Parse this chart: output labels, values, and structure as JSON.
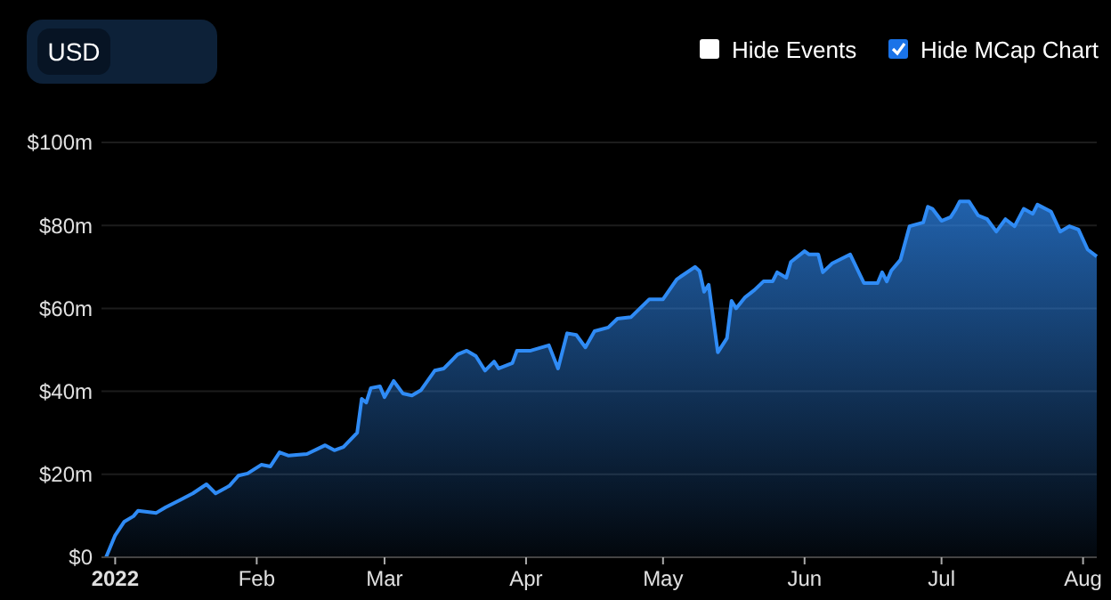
{
  "chart_data": {
    "type": "area",
    "annotations": [
      "USD",
      "Hide Events",
      "Hide MCap Chart"
    ],
    "x": [
      "2021-12-30",
      "2022-01-01",
      "2022-01-03",
      "2022-01-05",
      "2022-01-06",
      "2022-01-10",
      "2022-01-12",
      "2022-01-15",
      "2022-01-18",
      "2022-01-21",
      "2022-01-23",
      "2022-01-26",
      "2022-01-28",
      "2022-01-30",
      "2022-02-02",
      "2022-02-04",
      "2022-02-06",
      "2022-02-08",
      "2022-02-12",
      "2022-02-16",
      "2022-02-18",
      "2022-02-20",
      "2022-02-23",
      "2022-02-24",
      "2022-02-25",
      "2022-02-26",
      "2022-02-28",
      "2022-03-01",
      "2022-03-03",
      "2022-03-05",
      "2022-03-07",
      "2022-03-09",
      "2022-03-12",
      "2022-03-14",
      "2022-03-17",
      "2022-03-19",
      "2022-03-21",
      "2022-03-23",
      "2022-03-25",
      "2022-03-26",
      "2022-03-29",
      "2022-03-30",
      "2022-04-02",
      "2022-04-06",
      "2022-04-08",
      "2022-04-10",
      "2022-04-12",
      "2022-04-14",
      "2022-04-16",
      "2022-04-19",
      "2022-04-21",
      "2022-04-24",
      "2022-04-28",
      "2022-05-01",
      "2022-05-04",
      "2022-05-08",
      "2022-05-09",
      "2022-05-10",
      "2022-05-11",
      "2022-05-13",
      "2022-05-15",
      "2022-05-16",
      "2022-05-17",
      "2022-05-19",
      "2022-05-21",
      "2022-05-23",
      "2022-05-25",
      "2022-05-26",
      "2022-05-28",
      "2022-05-29",
      "2022-06-01",
      "2022-06-02",
      "2022-06-04",
      "2022-06-05",
      "2022-06-07",
      "2022-06-11",
      "2022-06-14",
      "2022-06-17",
      "2022-06-18",
      "2022-06-19",
      "2022-06-20",
      "2022-06-22",
      "2022-06-24",
      "2022-06-27",
      "2022-06-28",
      "2022-06-29",
      "2022-07-01",
      "2022-07-03",
      "2022-07-04",
      "2022-07-05",
      "2022-07-07",
      "2022-07-09",
      "2022-07-11",
      "2022-07-13",
      "2022-07-15",
      "2022-07-17",
      "2022-07-19",
      "2022-07-21",
      "2022-07-22",
      "2022-07-25",
      "2022-07-27",
      "2022-07-29",
      "2022-07-31",
      "2022-08-02",
      "2022-08-04"
    ],
    "series": [
      {
        "color": "#2f8bf5",
        "values": [
          0,
          5.3,
          8.6,
          9.9,
          11.2,
          10.7,
          12,
          13.7,
          15.4,
          17.6,
          15.4,
          17.2,
          19.7,
          20.2,
          22.3,
          21.9,
          25.3,
          24.5,
          24.9,
          27,
          25.8,
          26.6,
          30,
          38.2,
          37.3,
          40.8,
          41.2,
          38.6,
          42.5,
          39.5,
          39,
          40.3,
          45,
          45.5,
          48.9,
          49.8,
          48.5,
          45,
          47.2,
          45.5,
          46.8,
          49.8,
          49.8,
          51.1,
          45.5,
          54,
          53.6,
          50.6,
          54.5,
          55.4,
          57.5,
          57.9,
          62.2,
          62.2,
          67,
          70,
          69,
          64,
          65.7,
          49.4,
          52.8,
          61.8,
          60,
          62.7,
          64.4,
          66.5,
          66.5,
          68.7,
          67.4,
          71.2,
          73.8,
          73,
          73,
          68.7,
          70.8,
          73,
          66.1,
          66.1,
          68.7,
          66.5,
          69.1,
          71.7,
          79.8,
          80.7,
          84.5,
          84,
          81.1,
          82,
          83.7,
          85.8,
          85.8,
          82.4,
          81.5,
          78.5,
          81.5,
          79.8,
          84,
          82.8,
          85,
          83.3,
          78.5,
          79.8,
          79,
          74.2,
          72.5
        ]
      }
    ],
    "xlim": [
      "2021-12-29",
      "2022-08-04"
    ],
    "xticks": [
      {
        "value": "2022-01-01",
        "label": "2022"
      },
      {
        "value": "2022-02-01",
        "label": "Feb"
      },
      {
        "value": "2022-03-01",
        "label": "Mar"
      },
      {
        "value": "2022-04-01",
        "label": "Apr"
      },
      {
        "value": "2022-05-01",
        "label": "May"
      },
      {
        "value": "2022-06-01",
        "label": "Jun"
      },
      {
        "value": "2022-07-01",
        "label": "Jul"
      },
      {
        "value": "2022-08-01",
        "label": "Aug"
      }
    ],
    "ylim": [
      0,
      100
    ],
    "yticks": [
      {
        "value": 0,
        "label": "$0"
      },
      {
        "value": 20,
        "label": "$20m"
      },
      {
        "value": 40,
        "label": "$40m"
      },
      {
        "value": 60,
        "label": "$60m"
      },
      {
        "value": 80,
        "label": "$80m"
      },
      {
        "value": 100,
        "label": "$100m"
      }
    ],
    "grid": "y"
  }
}
